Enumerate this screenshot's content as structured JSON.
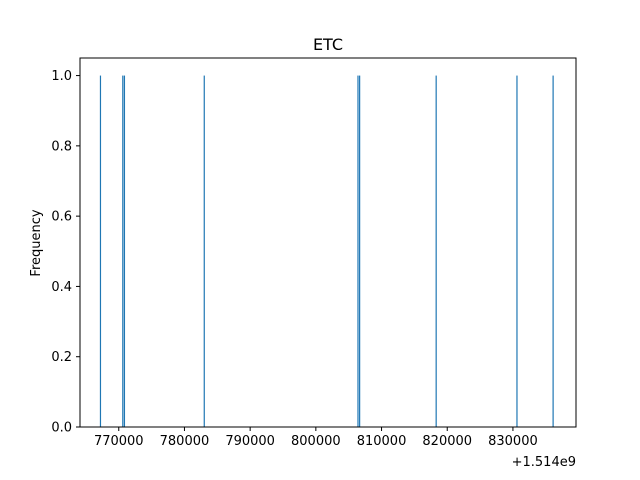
{
  "chart_data": {
    "type": "bar",
    "title": "ETC",
    "xlabel": "",
    "ylabel": "Frequency",
    "x_offset_label": "+1.514e9",
    "xlim": [
      764100,
      839600
    ],
    "ylim": [
      0,
      1.05
    ],
    "grid": false,
    "bar_color": "#1f77b4",
    "bars": [
      {
        "x": 767200,
        "value": 1.0
      },
      {
        "x": 770600,
        "value": 1.0
      },
      {
        "x": 770850,
        "value": 1.0
      },
      {
        "x": 783000,
        "value": 1.0
      },
      {
        "x": 806400,
        "value": 1.0
      },
      {
        "x": 806650,
        "value": 1.0
      },
      {
        "x": 818300,
        "value": 1.0
      },
      {
        "x": 830600,
        "value": 1.0
      },
      {
        "x": 836100,
        "value": 1.0
      }
    ],
    "x_ticks": [
      {
        "value": 770000,
        "label": "770000"
      },
      {
        "value": 780000,
        "label": "780000"
      },
      {
        "value": 790000,
        "label": "790000"
      },
      {
        "value": 800000,
        "label": "800000"
      },
      {
        "value": 810000,
        "label": "810000"
      },
      {
        "value": 820000,
        "label": "820000"
      },
      {
        "value": 830000,
        "label": "830000"
      }
    ],
    "y_ticks": [
      {
        "value": 0.0,
        "label": "0.0"
      },
      {
        "value": 0.2,
        "label": "0.2"
      },
      {
        "value": 0.4,
        "label": "0.4"
      },
      {
        "value": 0.6,
        "label": "0.6"
      },
      {
        "value": 0.8,
        "label": "0.8"
      },
      {
        "value": 1.0,
        "label": "1.0"
      }
    ]
  }
}
